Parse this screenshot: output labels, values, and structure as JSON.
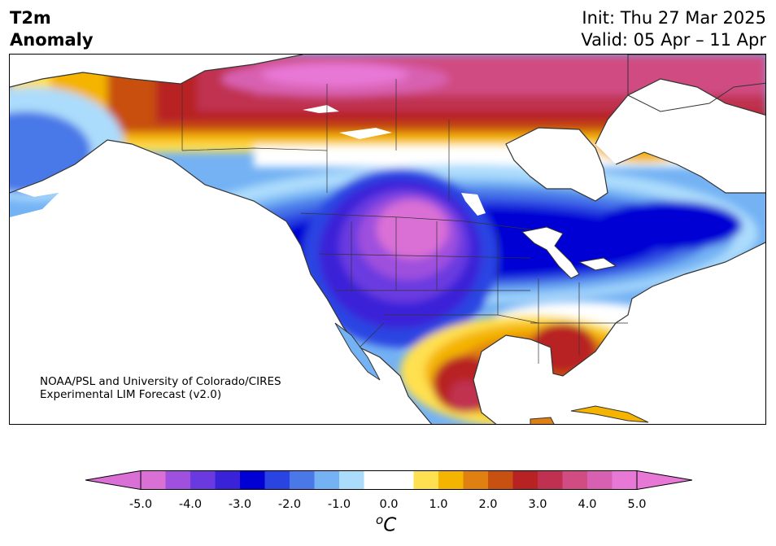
{
  "title": {
    "line1": "T2m",
    "line2": "Anomaly"
  },
  "info": {
    "init": "Init: Thu 27 Mar 2025",
    "valid": "Valid: 05 Apr – 11 Apr"
  },
  "credit": {
    "line1": "NOAA/PSL and University of Colorado/CIRES",
    "line2": "Experimental LIM Forecast (v2.0)"
  },
  "colorbar": {
    "ticks": [
      "-5.0",
      "-4.0",
      "-3.0",
      "-2.0",
      "-1.0",
      "0.0",
      "1.0",
      "2.0",
      "3.0",
      "4.0",
      "5.0"
    ],
    "unit_sup": "o",
    "unit": "C",
    "range": [
      -5.0,
      5.0
    ],
    "step": 0.5,
    "colors": [
      "#da70d6",
      "#9f50de",
      "#6a3ae0",
      "#3a22d8",
      "#0000d4",
      "#2a44e2",
      "#4a78e8",
      "#74b2f4",
      "#acdcfc",
      "#ffffff",
      "#ffffff",
      "#ffe050",
      "#f4b400",
      "#e08010",
      "#c85010",
      "#b82222",
      "#c03050",
      "#d04c82",
      "#d860b0",
      "#e878d6"
    ],
    "extend_low": "#da70d6",
    "extend_high": "#e878d6"
  }
}
